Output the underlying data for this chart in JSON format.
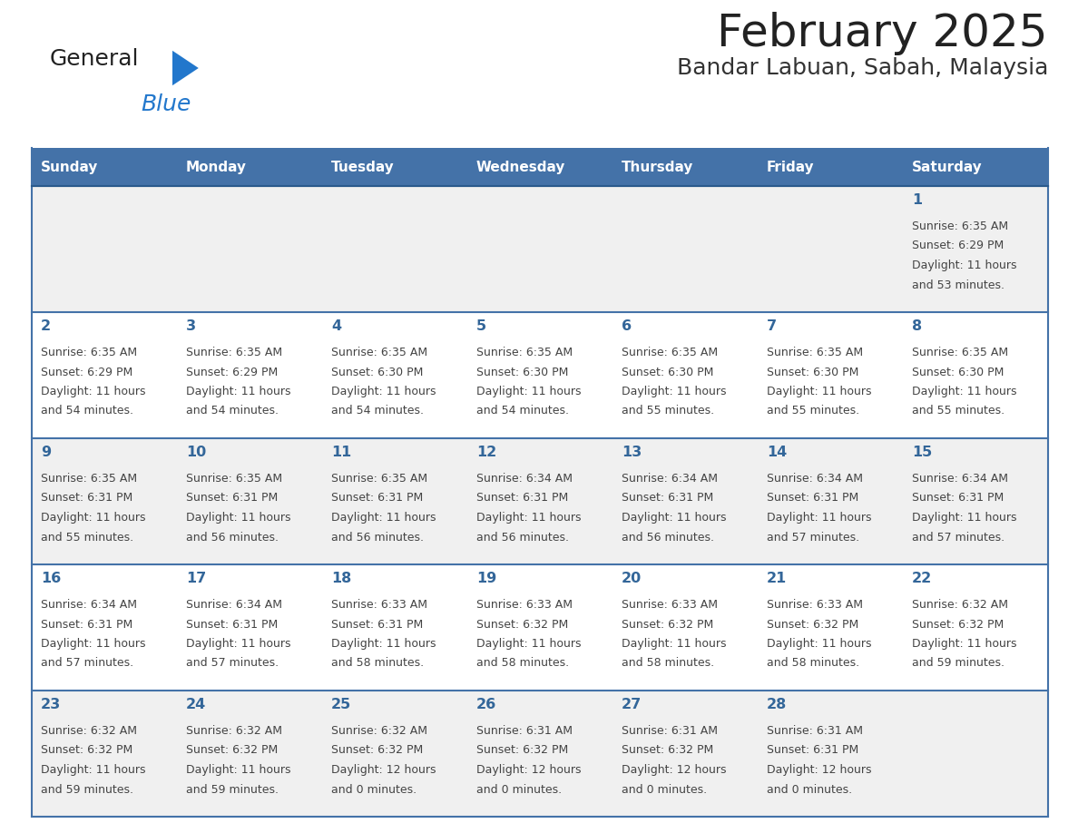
{
  "title": "February 2025",
  "subtitle": "Bandar Labuan, Sabah, Malaysia",
  "days_of_week": [
    "Sunday",
    "Monday",
    "Tuesday",
    "Wednesday",
    "Thursday",
    "Friday",
    "Saturday"
  ],
  "header_bg": "#4472a8",
  "header_text": "#ffffff",
  "row_bg_odd": "#f0f0f0",
  "row_bg_even": "#ffffff",
  "day_num_color": "#336699",
  "cell_text_color": "#444444",
  "border_color": "#4472a8",
  "logo_general_color": "#222222",
  "logo_blue_color": "#2277cc",
  "logo_triangle_color": "#2277cc",
  "title_color": "#222222",
  "subtitle_color": "#333333",
  "calendar_data": [
    [
      null,
      null,
      null,
      null,
      null,
      null,
      {
        "day": 1,
        "sunrise": "6:35 AM",
        "sunset": "6:29 PM",
        "daylight_line1": "Daylight: 11 hours",
        "daylight_line2": "and 53 minutes."
      }
    ],
    [
      {
        "day": 2,
        "sunrise": "6:35 AM",
        "sunset": "6:29 PM",
        "daylight_line1": "Daylight: 11 hours",
        "daylight_line2": "and 54 minutes."
      },
      {
        "day": 3,
        "sunrise": "6:35 AM",
        "sunset": "6:29 PM",
        "daylight_line1": "Daylight: 11 hours",
        "daylight_line2": "and 54 minutes."
      },
      {
        "day": 4,
        "sunrise": "6:35 AM",
        "sunset": "6:30 PM",
        "daylight_line1": "Daylight: 11 hours",
        "daylight_line2": "and 54 minutes."
      },
      {
        "day": 5,
        "sunrise": "6:35 AM",
        "sunset": "6:30 PM",
        "daylight_line1": "Daylight: 11 hours",
        "daylight_line2": "and 54 minutes."
      },
      {
        "day": 6,
        "sunrise": "6:35 AM",
        "sunset": "6:30 PM",
        "daylight_line1": "Daylight: 11 hours",
        "daylight_line2": "and 55 minutes."
      },
      {
        "day": 7,
        "sunrise": "6:35 AM",
        "sunset": "6:30 PM",
        "daylight_line1": "Daylight: 11 hours",
        "daylight_line2": "and 55 minutes."
      },
      {
        "day": 8,
        "sunrise": "6:35 AM",
        "sunset": "6:30 PM",
        "daylight_line1": "Daylight: 11 hours",
        "daylight_line2": "and 55 minutes."
      }
    ],
    [
      {
        "day": 9,
        "sunrise": "6:35 AM",
        "sunset": "6:31 PM",
        "daylight_line1": "Daylight: 11 hours",
        "daylight_line2": "and 55 minutes."
      },
      {
        "day": 10,
        "sunrise": "6:35 AM",
        "sunset": "6:31 PM",
        "daylight_line1": "Daylight: 11 hours",
        "daylight_line2": "and 56 minutes."
      },
      {
        "day": 11,
        "sunrise": "6:35 AM",
        "sunset": "6:31 PM",
        "daylight_line1": "Daylight: 11 hours",
        "daylight_line2": "and 56 minutes."
      },
      {
        "day": 12,
        "sunrise": "6:34 AM",
        "sunset": "6:31 PM",
        "daylight_line1": "Daylight: 11 hours",
        "daylight_line2": "and 56 minutes."
      },
      {
        "day": 13,
        "sunrise": "6:34 AM",
        "sunset": "6:31 PM",
        "daylight_line1": "Daylight: 11 hours",
        "daylight_line2": "and 56 minutes."
      },
      {
        "day": 14,
        "sunrise": "6:34 AM",
        "sunset": "6:31 PM",
        "daylight_line1": "Daylight: 11 hours",
        "daylight_line2": "and 57 minutes."
      },
      {
        "day": 15,
        "sunrise": "6:34 AM",
        "sunset": "6:31 PM",
        "daylight_line1": "Daylight: 11 hours",
        "daylight_line2": "and 57 minutes."
      }
    ],
    [
      {
        "day": 16,
        "sunrise": "6:34 AM",
        "sunset": "6:31 PM",
        "daylight_line1": "Daylight: 11 hours",
        "daylight_line2": "and 57 minutes."
      },
      {
        "day": 17,
        "sunrise": "6:34 AM",
        "sunset": "6:31 PM",
        "daylight_line1": "Daylight: 11 hours",
        "daylight_line2": "and 57 minutes."
      },
      {
        "day": 18,
        "sunrise": "6:33 AM",
        "sunset": "6:31 PM",
        "daylight_line1": "Daylight: 11 hours",
        "daylight_line2": "and 58 minutes."
      },
      {
        "day": 19,
        "sunrise": "6:33 AM",
        "sunset": "6:32 PM",
        "daylight_line1": "Daylight: 11 hours",
        "daylight_line2": "and 58 minutes."
      },
      {
        "day": 20,
        "sunrise": "6:33 AM",
        "sunset": "6:32 PM",
        "daylight_line1": "Daylight: 11 hours",
        "daylight_line2": "and 58 minutes."
      },
      {
        "day": 21,
        "sunrise": "6:33 AM",
        "sunset": "6:32 PM",
        "daylight_line1": "Daylight: 11 hours",
        "daylight_line2": "and 58 minutes."
      },
      {
        "day": 22,
        "sunrise": "6:32 AM",
        "sunset": "6:32 PM",
        "daylight_line1": "Daylight: 11 hours",
        "daylight_line2": "and 59 minutes."
      }
    ],
    [
      {
        "day": 23,
        "sunrise": "6:32 AM",
        "sunset": "6:32 PM",
        "daylight_line1": "Daylight: 11 hours",
        "daylight_line2": "and 59 minutes."
      },
      {
        "day": 24,
        "sunrise": "6:32 AM",
        "sunset": "6:32 PM",
        "daylight_line1": "Daylight: 11 hours",
        "daylight_line2": "and 59 minutes."
      },
      {
        "day": 25,
        "sunrise": "6:32 AM",
        "sunset": "6:32 PM",
        "daylight_line1": "Daylight: 12 hours",
        "daylight_line2": "and 0 minutes."
      },
      {
        "day": 26,
        "sunrise": "6:31 AM",
        "sunset": "6:32 PM",
        "daylight_line1": "Daylight: 12 hours",
        "daylight_line2": "and 0 minutes."
      },
      {
        "day": 27,
        "sunrise": "6:31 AM",
        "sunset": "6:32 PM",
        "daylight_line1": "Daylight: 12 hours",
        "daylight_line2": "and 0 minutes."
      },
      {
        "day": 28,
        "sunrise": "6:31 AM",
        "sunset": "6:31 PM",
        "daylight_line1": "Daylight: 12 hours",
        "daylight_line2": "and 0 minutes."
      },
      null
    ]
  ]
}
